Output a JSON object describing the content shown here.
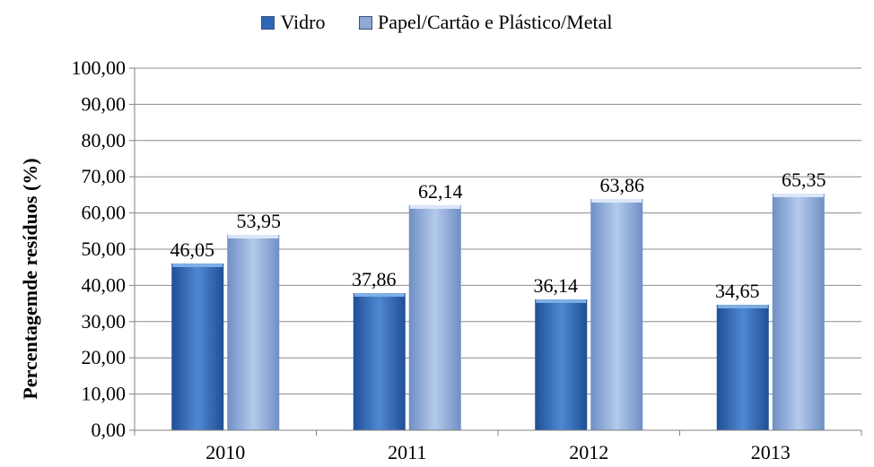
{
  "chart_data": {
    "type": "bar",
    "categories": [
      "2010",
      "2011",
      "2012",
      "2013"
    ],
    "series": [
      {
        "name": "Vidro",
        "values": [
          46.05,
          37.86,
          36.14,
          34.65
        ],
        "value_labels": [
          "46,05",
          "37,86",
          "36,14",
          "34,65"
        ]
      },
      {
        "name": "Papel/Cartão e Plástico/Metal",
        "values": [
          53.95,
          62.14,
          63.86,
          65.35
        ],
        "value_labels": [
          "53,95",
          "62,14",
          "63,86",
          "65,35"
        ]
      }
    ],
    "ylabel": "Percentagemde resíduos (%)",
    "xlabel": "",
    "ylim": [
      0,
      100
    ],
    "yticks": [
      0,
      10,
      20,
      30,
      40,
      50,
      60,
      70,
      80,
      90,
      100
    ],
    "ytick_labels": [
      "0,00",
      "10,00",
      "20,00",
      "30,00",
      "40,00",
      "50,00",
      "60,00",
      "70,00",
      "80,00",
      "90,00",
      "100,00"
    ],
    "grid": true,
    "legend_position": "top",
    "colors": {
      "series0_dark": "#1f4f96",
      "series0_light": "#4f88d2",
      "series1_dark": "#6f8fc4",
      "series1_light": "#b4caec"
    }
  }
}
